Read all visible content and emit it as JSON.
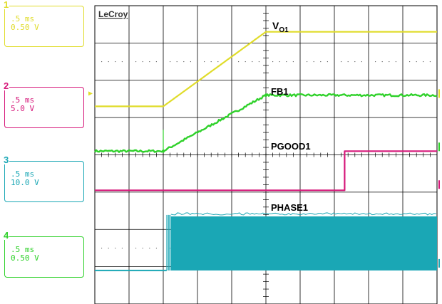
{
  "brand": "LeCroy",
  "channels": [
    {
      "num": "1",
      "time_div": ".5 ms",
      "volt_div": "0.50 V",
      "color": "#e0dc2a"
    },
    {
      "num": "2",
      "time_div": ".5 ms",
      "volt_div": "5.0 V",
      "color": "#d6187a"
    },
    {
      "num": "3",
      "time_div": ".5 ms",
      "volt_div": "10.0 V",
      "color": "#1aa7b5"
    },
    {
      "num": "4",
      "time_div": ".5 ms",
      "volt_div": "0.50 V",
      "color": "#2fd12a"
    }
  ],
  "chart_data": {
    "type": "line",
    "title": "",
    "xlabel": "",
    "ylabel": "",
    "x_divisions": 10,
    "y_divisions": 8,
    "grid": true,
    "xlim": [
      0,
      10
    ],
    "ylim": [
      0,
      8
    ],
    "series": [
      {
        "name": "V",
        "name_sub": "O1",
        "channel": "1",
        "color": "#e0dc2a",
        "x": [
          0,
          2.0,
          5.0,
          10
        ],
        "y": [
          5.3,
          5.3,
          7.3,
          7.3
        ]
      },
      {
        "name": "FB1",
        "channel": "4",
        "color": "#2fd12a",
        "x": [
          0,
          2.0,
          5.0,
          10
        ],
        "y": [
          4.1,
          4.1,
          5.6,
          5.6
        ],
        "noise": 0.03
      },
      {
        "name": "PGOOD1",
        "channel": "2",
        "color": "#d6187a",
        "x": [
          0,
          7.3,
          7.3,
          10
        ],
        "y": [
          3.05,
          3.05,
          4.1,
          4.1
        ]
      },
      {
        "name": "PHASE1",
        "channel": "3",
        "color": "#1aa7b5",
        "type": "switching",
        "baseline": 0.9,
        "high": 2.35,
        "start": 2.1,
        "end": 10
      }
    ]
  }
}
